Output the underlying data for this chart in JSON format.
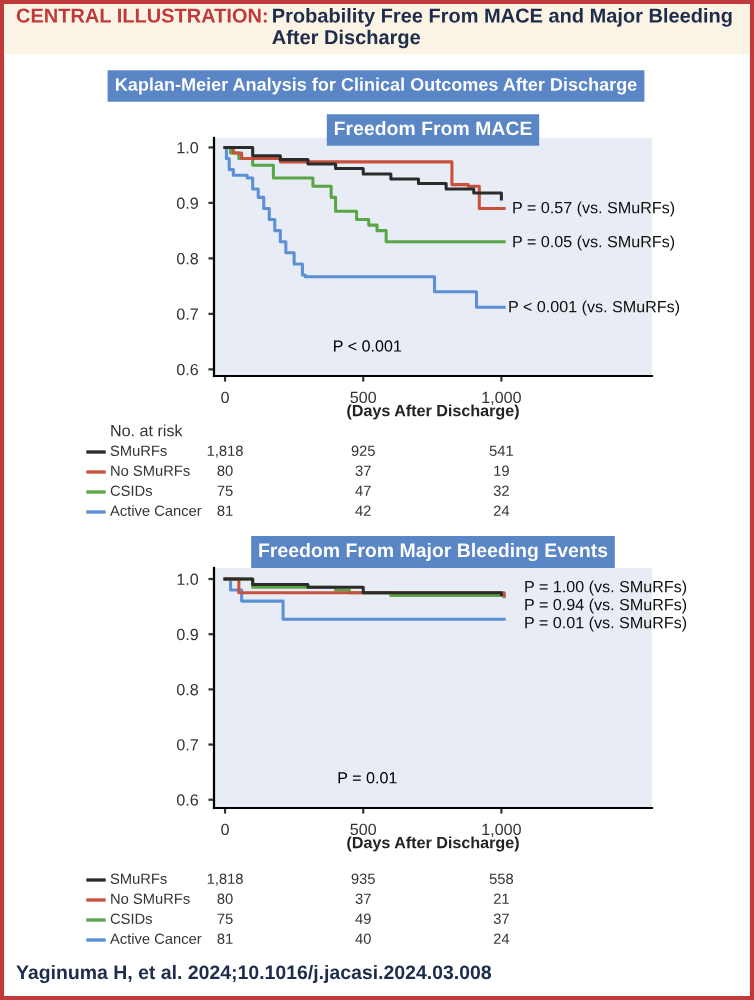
{
  "chart_data": [
    {
      "type": "step",
      "title": "Freedom From MACE",
      "xlabel": "(Days After Discharge)",
      "xlim": [
        -40,
        1545
      ],
      "ylim": [
        0.588,
        1.017
      ],
      "xticks": [
        0,
        500,
        {
          "value": 1000,
          "label": "1,000"
        }
      ],
      "yticks": [
        {
          "value": 0.6,
          "label": "0.6"
        },
        {
          "value": 0.7,
          "label": "0.7"
        },
        {
          "value": 0.8,
          "label": "0.8"
        },
        {
          "value": 0.9,
          "label": "0.9"
        },
        {
          "value": 1.0,
          "label": "1.0"
        }
      ],
      "grid": false,
      "legend": "bottom",
      "line_style": "solid",
      "series": [
        {
          "name": "SMuRFs",
          "color": "#2b2b2b",
          "x": [
            0,
            100,
            200,
            300,
            400,
            500,
            600,
            700,
            800,
            900,
            1000
          ],
          "values": [
            1.0,
            0.985,
            0.978,
            0.97,
            0.962,
            0.952,
            0.943,
            0.935,
            0.925,
            0.918,
            0.907
          ]
        },
        {
          "name": "No SMuRFs",
          "color": "#c8503c",
          "x": [
            0,
            30,
            60,
            200,
            821,
            880,
            920,
            1010
          ],
          "values": [
            1.0,
            0.99,
            0.98,
            0.974,
            0.933,
            0.93,
            0.89,
            0.89
          ]
        },
        {
          "name": "CSIDs",
          "color": "#5aa546",
          "x": [
            0,
            20,
            50,
            100,
            175,
            318,
            384,
            400,
            476,
            520,
            550,
            583,
            1010
          ],
          "values": [
            1.0,
            0.99,
            0.98,
            0.968,
            0.945,
            0.93,
            0.91,
            0.885,
            0.87,
            0.86,
            0.85,
            0.83,
            0.83
          ]
        },
        {
          "name": "Active Cancer",
          "color": "#5b8fd6",
          "x": [
            0,
            5,
            15,
            30,
            80,
            100,
            120,
            140,
            160,
            180,
            200,
            220,
            250,
            280,
            290,
            758,
            910,
            1010
          ],
          "values": [
            1.0,
            0.98,
            0.96,
            0.95,
            0.945,
            0.925,
            0.91,
            0.89,
            0.87,
            0.85,
            0.83,
            0.81,
            0.79,
            0.77,
            0.767,
            0.74,
            0.712,
            0.712
          ]
        }
      ],
      "annotations": [
        "P = 0.57 (vs. SMuRFs)",
        "P = 0.05 (vs. SMuRFs)",
        "P < 0.001 (vs. SMuRFs)",
        "CENTRAL ILLUSTRATION: Probability Free From MACE and Major Bleeding After Discharge",
        "Kaplan-Meier Analysis for Clinical Outcomes After Discharge",
        "P < 0.001",
        "No. at risk",
        "1,818",
        "925",
        "541",
        "80",
        "37",
        "19",
        "75",
        "47",
        "32",
        "81",
        "42",
        "24"
      ]
    },
    {
      "type": "step",
      "title": "Freedom From Major Bleeding Events",
      "xlabel": "(Days After Discharge)",
      "xlim": [
        -40,
        1545
      ],
      "ylim": [
        0.585,
        1.02
      ],
      "xticks": [
        0,
        500,
        {
          "value": 1000,
          "label": "1,000"
        }
      ],
      "yticks": [
        {
          "value": 0.6,
          "label": "0.6"
        },
        {
          "value": 0.7,
          "label": "0.7"
        },
        {
          "value": 0.8,
          "label": "0.8"
        },
        {
          "value": 0.9,
          "label": "0.9"
        },
        {
          "value": 1.0,
          "label": "1.0"
        }
      ],
      "grid": false,
      "legend": "bottom",
      "line_style": "solid",
      "series": [
        {
          "name": "SMuRFs",
          "color": "#2b2b2b",
          "x": [
            0,
            100,
            300,
            500,
            1000
          ],
          "values": [
            1.0,
            0.99,
            0.985,
            0.975,
            0.972
          ]
        },
        {
          "name": "No SMuRFs",
          "color": "#c8503c",
          "x": [
            0,
            50,
            1000,
            1010
          ],
          "values": [
            1.0,
            0.975,
            0.975,
            0.97
          ]
        },
        {
          "name": "CSIDs",
          "color": "#5aa546",
          "x": [
            0,
            100,
            400,
            450,
            600,
            1010
          ],
          "values": [
            1.0,
            0.985,
            0.98,
            0.975,
            0.97,
            0.968
          ]
        },
        {
          "name": "Active Cancer",
          "color": "#5b8fd6",
          "x": [
            0,
            20,
            60,
            200,
            210,
            1010
          ],
          "values": [
            1.0,
            0.98,
            0.96,
            0.96,
            0.927,
            0.927
          ]
        }
      ],
      "annotations": [
        "P = 1.00 (vs. SMuRFs)",
        "P = 0.94 (vs. SMuRFs)",
        "P = 0.01 (vs. SMuRFs)",
        "P = 0.01",
        "1,818",
        "935",
        "558",
        "80",
        "37",
        "21",
        "75",
        "49",
        "37",
        "81",
        "40",
        "24",
        "Yaginuma H, et al. 2024;10.1016/j.jacasi.2024.03.008"
      ]
    }
  ]
}
